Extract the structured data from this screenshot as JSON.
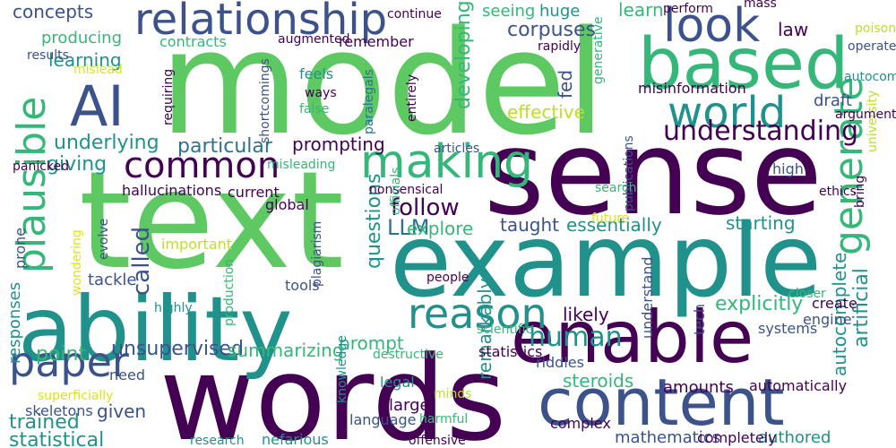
{
  "background": "#ffffff",
  "palette": {
    "p": "#440154",
    "b": "#3b528b",
    "t": "#21918c",
    "g": "#5ec962",
    "y": "#bddf26",
    "ly": "#dde318",
    "m": "#35b779",
    "tb": "#2c728e"
  },
  "words": [
    {
      "text": "model",
      "color": "g"
    },
    {
      "text": "text",
      "color": "g"
    },
    {
      "text": "sense",
      "color": "p"
    },
    {
      "text": "words",
      "color": "p"
    },
    {
      "text": "example",
      "color": "t"
    },
    {
      "text": "ability",
      "color": "t"
    },
    {
      "text": "content",
      "color": "b"
    },
    {
      "text": "enable",
      "color": "p"
    },
    {
      "text": "relationship",
      "color": "b"
    },
    {
      "text": "based",
      "color": "m"
    },
    {
      "text": "AI",
      "color": "b"
    },
    {
      "text": "look",
      "color": "b"
    },
    {
      "text": "world",
      "color": "t"
    },
    {
      "text": "plausible",
      "color": "m"
    },
    {
      "text": "making",
      "color": "m"
    },
    {
      "text": "common",
      "color": "p"
    },
    {
      "text": "generate",
      "color": "m"
    },
    {
      "text": "reason",
      "color": "t"
    },
    {
      "text": "paper",
      "color": "b"
    },
    {
      "text": "understanding",
      "color": "p"
    },
    {
      "text": "concepts",
      "color": "b"
    },
    {
      "text": "producing",
      "color": "m"
    },
    {
      "text": "learning",
      "color": "t"
    },
    {
      "text": "underlying",
      "color": "t"
    },
    {
      "text": "giving",
      "color": "t"
    },
    {
      "text": "particular",
      "color": "tb"
    },
    {
      "text": "prompting",
      "color": "p"
    },
    {
      "text": "corpuses",
      "color": "b"
    },
    {
      "text": "huge",
      "color": "t"
    },
    {
      "text": "seeing",
      "color": "m"
    },
    {
      "text": "learn",
      "color": "m"
    },
    {
      "text": "effective",
      "color": "y"
    },
    {
      "text": "developing",
      "color": "m"
    },
    {
      "text": "fed",
      "color": "b"
    },
    {
      "text": "law",
      "color": "p"
    },
    {
      "text": "draft",
      "color": "b"
    },
    {
      "text": "follow",
      "color": "p"
    },
    {
      "text": "LLM",
      "color": "tb"
    },
    {
      "text": "explore",
      "color": "m"
    },
    {
      "text": "taught",
      "color": "b"
    },
    {
      "text": "essentially",
      "color": "t"
    },
    {
      "text": "starting",
      "color": "t"
    },
    {
      "text": "questions",
      "color": "t"
    },
    {
      "text": "called",
      "color": "b"
    },
    {
      "text": "global",
      "color": "p"
    },
    {
      "text": "human",
      "color": "t"
    },
    {
      "text": "explicitly",
      "color": "m"
    },
    {
      "text": "likely",
      "color": "p"
    },
    {
      "text": "prompt",
      "color": "m"
    },
    {
      "text": "artificial",
      "color": "t"
    },
    {
      "text": "autocomplete",
      "color": "t"
    },
    {
      "text": "point",
      "color": "m"
    },
    {
      "text": "unsupervised",
      "color": "b"
    },
    {
      "text": "summarizing",
      "color": "m"
    },
    {
      "text": "remarkably",
      "color": "t"
    },
    {
      "text": "steroids",
      "color": "m"
    },
    {
      "text": "amounts",
      "color": "p"
    },
    {
      "text": "automatically",
      "color": "p"
    },
    {
      "text": "large",
      "color": "p"
    },
    {
      "text": "legal",
      "color": "t"
    },
    {
      "text": "given",
      "color": "b"
    },
    {
      "text": "trained",
      "color": "t"
    },
    {
      "text": "statistical",
      "color": "t"
    },
    {
      "text": "responses",
      "color": "t"
    },
    {
      "text": "tackle",
      "color": "b"
    },
    {
      "text": "tools",
      "color": "b"
    },
    {
      "text": "statistics",
      "color": "p"
    },
    {
      "text": "riddles",
      "color": "b"
    },
    {
      "text": "language",
      "color": "b"
    },
    {
      "text": "mathematics",
      "color": "b"
    },
    {
      "text": "authored",
      "color": "t"
    },
    {
      "text": "complex",
      "color": "p"
    },
    {
      "text": "completely",
      "color": "p"
    },
    {
      "text": "skeletons",
      "color": "b"
    },
    {
      "text": "superficially",
      "color": "ly"
    },
    {
      "text": "research",
      "color": "t"
    },
    {
      "text": "nefarious",
      "color": "t"
    },
    {
      "text": "offensive",
      "color": "p"
    },
    {
      "text": "knowledge",
      "color": "t"
    },
    {
      "text": "minds",
      "color": "y"
    },
    {
      "text": "harmful",
      "color": "m"
    },
    {
      "text": "need",
      "color": "b"
    },
    {
      "text": "destructive",
      "color": "m"
    },
    {
      "text": "scientific",
      "color": "m"
    },
    {
      "text": "systems",
      "color": "b"
    },
    {
      "text": "closer",
      "color": "m"
    },
    {
      "text": "engine",
      "color": "b"
    },
    {
      "text": "create",
      "color": "p"
    },
    {
      "text": "tech",
      "color": "b"
    },
    {
      "text": "understand",
      "color": "b"
    },
    {
      "text": "people",
      "color": "p"
    },
    {
      "text": "highly",
      "color": "t"
    },
    {
      "text": "production",
      "color": "m"
    },
    {
      "text": "important",
      "color": "y"
    },
    {
      "text": "plagiarism",
      "color": "b"
    },
    {
      "text": "prone",
      "color": "b"
    },
    {
      "text": "wondering",
      "color": "ly"
    },
    {
      "text": "evolve",
      "color": "b"
    },
    {
      "text": "panicked",
      "color": "p"
    },
    {
      "text": "hallucinations",
      "color": "p"
    },
    {
      "text": "current",
      "color": "p"
    },
    {
      "text": "misleading",
      "color": "m"
    },
    {
      "text": "nonsensical",
      "color": "p"
    },
    {
      "text": "officials",
      "color": "m"
    },
    {
      "text": "publications",
      "color": "b"
    },
    {
      "text": "future",
      "color": "ly"
    },
    {
      "text": "search",
      "color": "m"
    },
    {
      "text": "ethics",
      "color": "p"
    },
    {
      "text": "bring",
      "color": "p"
    },
    {
      "text": "high",
      "color": "b"
    },
    {
      "text": "university",
      "color": "y"
    },
    {
      "text": "arguments",
      "color": "p"
    },
    {
      "text": "autocomplete",
      "color": "t"
    },
    {
      "text": "misinformation",
      "color": "p"
    },
    {
      "text": "articles",
      "color": "b"
    },
    {
      "text": "generative",
      "color": "m"
    },
    {
      "text": "entirely",
      "color": "p"
    },
    {
      "text": "paralegals",
      "color": "tb"
    },
    {
      "text": "shortcomings",
      "color": "b"
    },
    {
      "text": "requiring",
      "color": "p"
    },
    {
      "text": "ways",
      "color": "p"
    },
    {
      "text": "feels",
      "color": "t"
    },
    {
      "text": "false",
      "color": "m"
    },
    {
      "text": "contracts",
      "color": "m"
    },
    {
      "text": "augmented",
      "color": "p"
    },
    {
      "text": "remember",
      "color": "p"
    },
    {
      "text": "rapidly",
      "color": "p"
    },
    {
      "text": "perform",
      "color": "p"
    },
    {
      "text": "mass",
      "color": "p"
    },
    {
      "text": "poison",
      "color": "y"
    },
    {
      "text": "operate",
      "color": "b"
    },
    {
      "text": "results",
      "color": "b"
    },
    {
      "text": "mislead",
      "color": "ly"
    },
    {
      "text": "continue",
      "color": "p"
    }
  ]
}
